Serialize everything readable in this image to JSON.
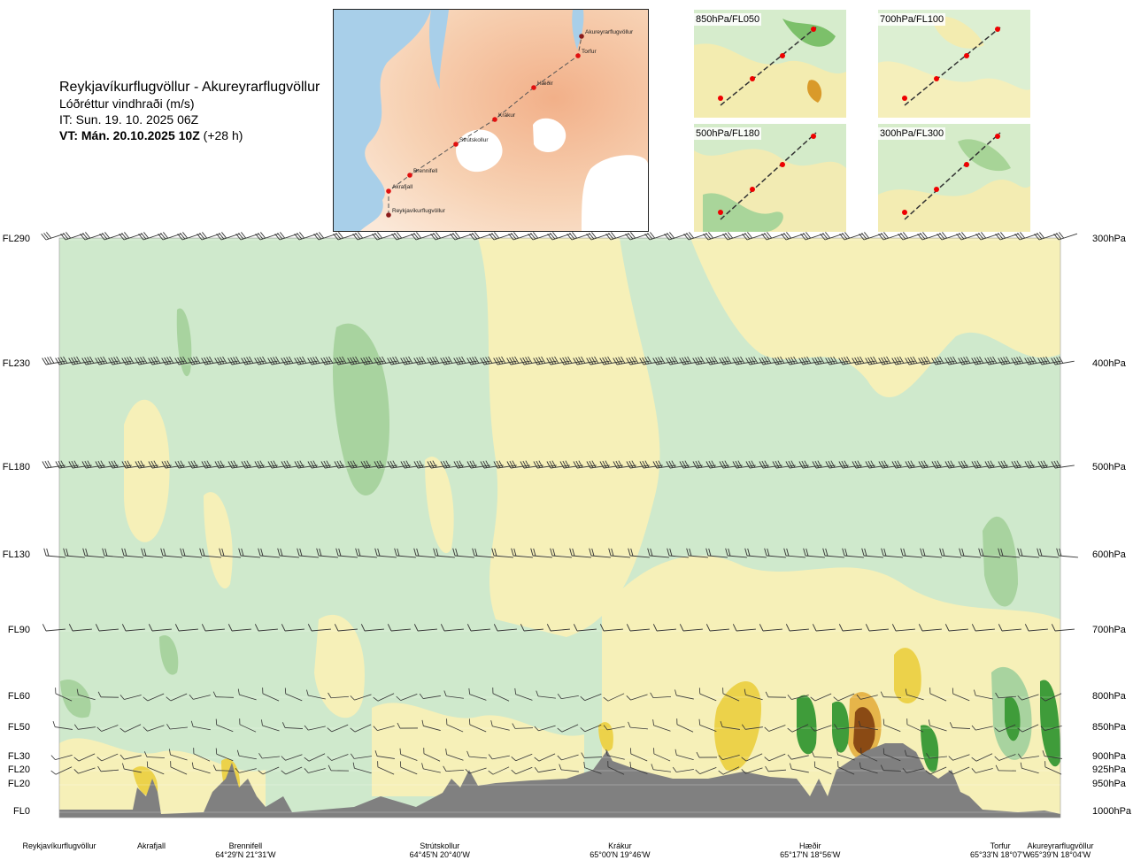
{
  "header": {
    "title": "Reykjavíkurflugvöllur - Akureyrarflugvöllur",
    "subtitle": "Lóðréttur vindhraði (m/s)",
    "init_time": "IT: Sun. 19. 10. 2025 06Z",
    "valid_time": "VT: Mán. 20.10.2025 10Z",
    "lead": "(+28 h)"
  },
  "route_map": {
    "waypoints": [
      "Reykjavíkurflugvöllur",
      "Akrafjall",
      "Brennifell",
      "Strútskollur",
      "Krákur",
      "Hæðir",
      "Torfur",
      "Akureyrarflugvöllur"
    ]
  },
  "minimaps": [
    {
      "label": "850hPa/FL050"
    },
    {
      "label": "700hPa/FL100"
    },
    {
      "label": "500hPa/FL180"
    },
    {
      "label": "300hPa/FL300"
    }
  ],
  "chart_data": {
    "type": "heatmap",
    "title": "Reykjavíkurflugvöllur - Akureyrarflugvöllur",
    "variable": "Lóðréttur vindhraði (m/s)",
    "y_axis_left": [
      "FL290",
      "FL230",
      "FL180",
      "FL130",
      "FL90",
      "FL60",
      "FL50",
      "FL30",
      "FL20",
      "FL20",
      "FL0"
    ],
    "y_axis_right": [
      "300hPa",
      "400hPa",
      "500hPa",
      "600hPa",
      "700hPa",
      "800hPa",
      "850hPa",
      "900hPa",
      "925hPa",
      "950hPa",
      "1000hPa"
    ],
    "pressure_levels": [
      300,
      400,
      500,
      600,
      700,
      800,
      850,
      900,
      925,
      950,
      1000
    ],
    "x_range": [
      0,
      1
    ],
    "stations": [
      {
        "name": "Reykjavíkurflugvöllur",
        "coord": "",
        "pos": 0.0
      },
      {
        "name": "Akrafjall",
        "coord": "",
        "pos": 0.092
      },
      {
        "name": "Brennifell",
        "coord": "64°29'N 21°31'W",
        "pos": 0.186
      },
      {
        "name": "Strútskollur",
        "coord": "64°45'N 20°40'W",
        "pos": 0.38
      },
      {
        "name": "Krákur",
        "coord": "65°00'N 19°46'W",
        "pos": 0.56
      },
      {
        "name": "Hæðir",
        "coord": "65°17'N 18°56'W",
        "pos": 0.75
      },
      {
        "name": "Torfur",
        "coord": "65°33'N 18°07'W",
        "pos": 0.94
      },
      {
        "name": "Akureyrarflugvöllur",
        "coord": "65°39'N 18°04'W",
        "pos": 1.0
      }
    ]
  }
}
